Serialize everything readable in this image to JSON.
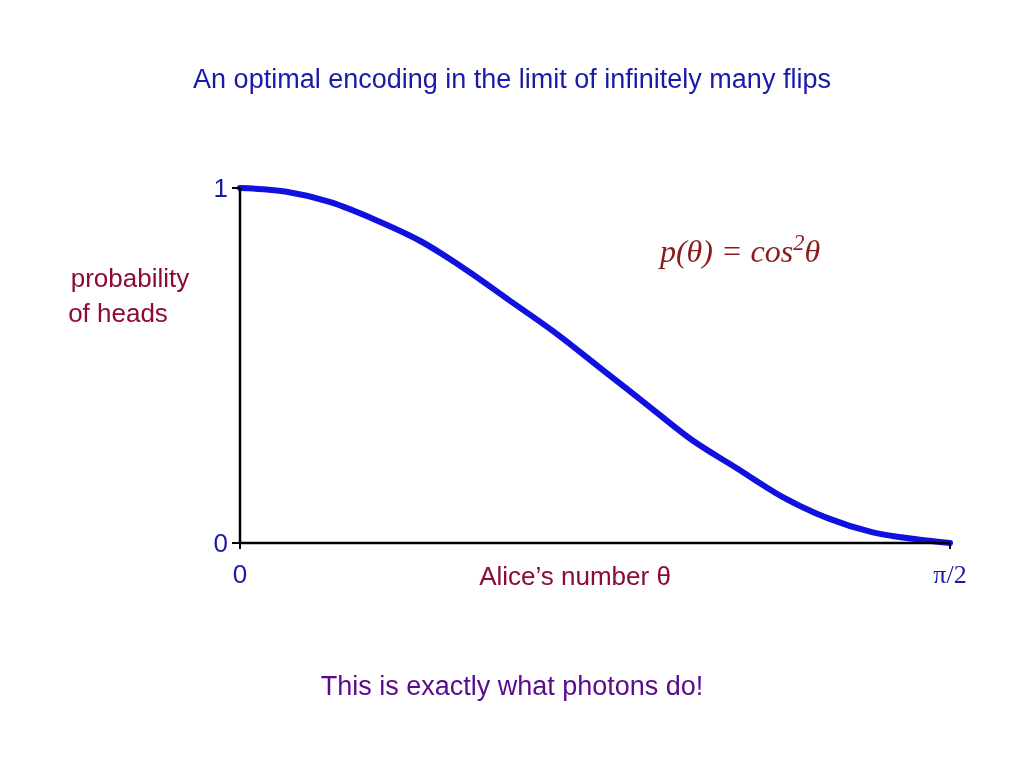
{
  "chart_data": {
    "type": "line",
    "title": "An optimal encoding in the limit of infinitely many flips",
    "xlabel": "Alice’s number θ",
    "ylabel": "probability of heads",
    "x": [
      0,
      0.1,
      0.2,
      0.3,
      0.4,
      0.5,
      0.6,
      0.7,
      0.8,
      0.9,
      1.0,
      1.1,
      1.2,
      1.3,
      1.4,
      1.5,
      1.5708
    ],
    "series": [
      {
        "color": "#1010e0",
        "values": [
          1,
          0.99,
          0.96,
          0.91,
          0.85,
          0.77,
          0.68,
          0.59,
          0.49,
          0.39,
          0.29,
          0.21,
          0.13,
          0.07,
          0.03,
          0.01,
          0
        ]
      }
    ],
    "xlim": [
      0,
      1.5708
    ],
    "ylim": [
      0,
      1
    ],
    "xticks": [
      0,
      {
        "value": 1.5708,
        "label": "π/2"
      }
    ],
    "yticks": [
      0,
      1
    ],
    "annotations": [
      "p(θ) = cos$^{2}$θ",
      "This is exactly what photons do!"
    ],
    "grid": false,
    "marker": "none",
    "line_style": "solid"
  }
}
